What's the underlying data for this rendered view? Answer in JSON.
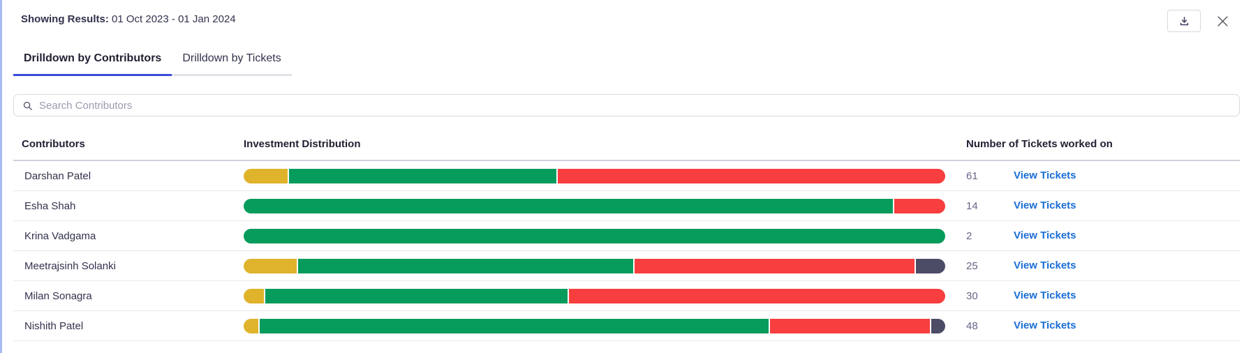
{
  "header": {
    "label": "Showing Results:",
    "value": "01 Oct 2023 - 01 Jan 2024"
  },
  "tabs": [
    {
      "label": "Drilldown by Contributors",
      "active": true
    },
    {
      "label": "Drilldown by Tickets",
      "active": false
    }
  ],
  "search": {
    "placeholder": "Search Contributors",
    "icon": "search-icon"
  },
  "table": {
    "columns": [
      "Contributors",
      "Investment Distribution",
      "Number of Tickets worked on"
    ],
    "view_tickets_label": "View Tickets",
    "rows": [
      {
        "name": "Darshan Patel",
        "tickets": "61",
        "segments": [
          {
            "color": "yellow",
            "pct": 6.3
          },
          {
            "color": "green",
            "pct": 38.3
          },
          {
            "color": "red",
            "pct": 55.4
          }
        ]
      },
      {
        "name": "Esha Shah",
        "tickets": "14",
        "segments": [
          {
            "color": "green",
            "pct": 92.7
          },
          {
            "color": "red",
            "pct": 7.3
          }
        ]
      },
      {
        "name": "Krina Vadgama",
        "tickets": "2",
        "segments": [
          {
            "color": "green",
            "pct": 100
          }
        ]
      },
      {
        "name": "Meetrajsinh Solanki",
        "tickets": "25",
        "segments": [
          {
            "color": "yellow",
            "pct": 7.6
          },
          {
            "color": "green",
            "pct": 48.1
          },
          {
            "color": "red",
            "pct": 40.1
          },
          {
            "color": "dark",
            "pct": 4.2
          }
        ]
      },
      {
        "name": "Milan Sonagra",
        "tickets": "30",
        "segments": [
          {
            "color": "yellow",
            "pct": 2.9
          },
          {
            "color": "green",
            "pct": 43.3
          },
          {
            "color": "red",
            "pct": 53.8
          }
        ]
      },
      {
        "name": "Nishith Patel",
        "tickets": "48",
        "segments": [
          {
            "color": "yellow",
            "pct": 2.1
          },
          {
            "color": "green",
            "pct": 73.0
          },
          {
            "color": "red",
            "pct": 22.9
          },
          {
            "color": "dark",
            "pct": 2.0
          }
        ]
      }
    ]
  },
  "colors": {
    "yellow": "#DFB32B",
    "green": "#079B5C",
    "red": "#F83E3E",
    "dark": "#4C4C66",
    "link_blue": "#1A6DD5",
    "tab_active_blue": "#3B4AD6",
    "left_edge": "#A8BBF2"
  }
}
